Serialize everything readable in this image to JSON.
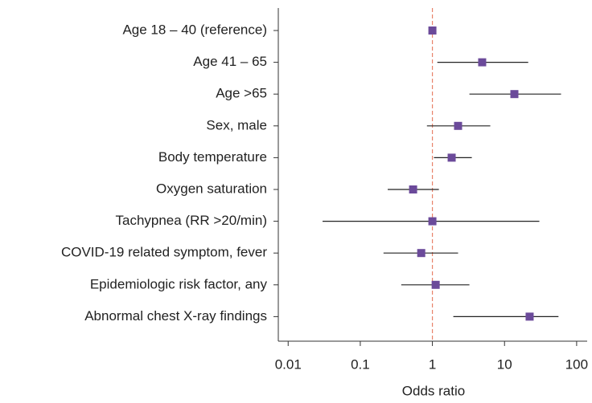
{
  "chart_data": {
    "type": "forest",
    "xlabel": "Odds ratio",
    "categories": [
      "Age 18 – 40 (reference)",
      "Age 41 – 65",
      "Age >65",
      "Sex, male",
      "Body temperature",
      "Oxygen saturation",
      "Tachypnea (RR >20/min)",
      "COVID-19 related symptom, fever",
      "Epidemiologic risk factor, any",
      "Abnormal chest X-ray findings"
    ],
    "series": [
      {
        "color": "#6b4a9a",
        "values": [
          1.0,
          4.9,
          13.7,
          2.27,
          1.85,
          0.54,
          1.0,
          0.7,
          1.11,
          22.3
        ],
        "lower": [
          null,
          1.17,
          3.26,
          0.84,
          1.05,
          0.24,
          0.03,
          0.21,
          0.37,
          1.95
        ],
        "upper": [
          null,
          21.3,
          60.8,
          6.35,
          3.52,
          1.23,
          30.4,
          2.27,
          3.26,
          56
        ]
      }
    ],
    "xscale": "log",
    "xlim": [
      0.0073,
      140
    ],
    "xticks": [
      0.01,
      0.1,
      1,
      10,
      100
    ],
    "reference_line": 1,
    "reference_color": "#e8826a"
  }
}
